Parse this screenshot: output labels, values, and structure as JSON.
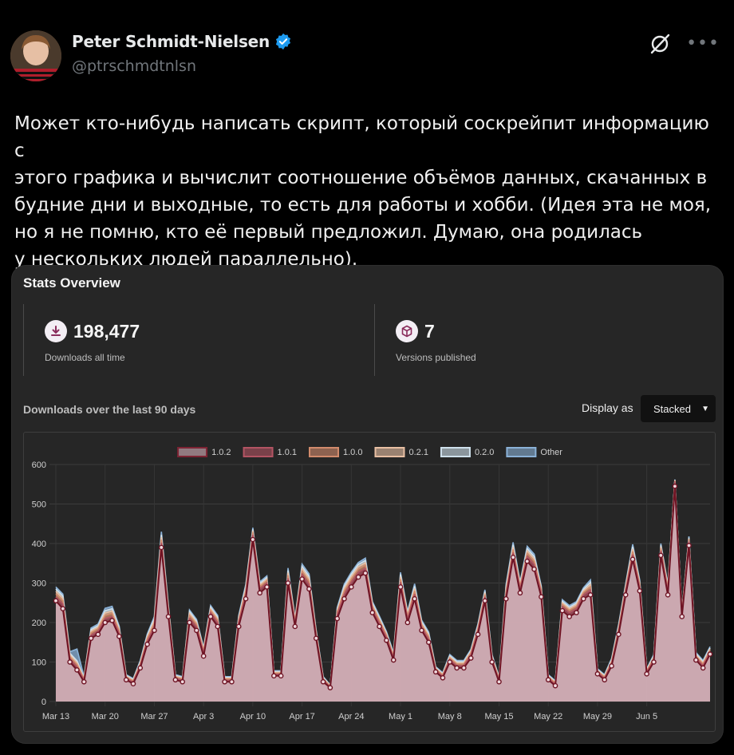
{
  "tweet": {
    "author_name": "Peter Schmidt-Nielsen",
    "author_handle": "@ptrschmdtnlsn",
    "text": "Может кто-нибудь написать скрипт, который соскрейпит информацию с\nэтого графика и вычислит соотношение объёмов данных, скачанных в\nбудние дни и выходные, то есть для работы и хобби. (Идея эта не моя,\nно я не помню, кто её первый предложил. Думаю, она родилась\nу нескольких людей параллельно)."
  },
  "card": {
    "title": "Stats Overview",
    "downloads_value": "198,477",
    "downloads_label": "Downloads all time",
    "versions_value": "7",
    "versions_label": "Versions published",
    "chart_heading": "Downloads over the last 90 days",
    "display_as_label": "Display as",
    "display_select_value": "Stacked"
  },
  "colors": {
    "accent_fill": "#d9b3bc",
    "line_dark": "#6e1424",
    "verified_blue": "#1d9bf0"
  },
  "chart_data": {
    "type": "area",
    "title": "",
    "xlabel": "",
    "ylabel": "",
    "ylim": [
      0,
      600
    ],
    "yticks": [
      0,
      100,
      200,
      300,
      400,
      500,
      600
    ],
    "x_tick_labels": [
      "Mar 13",
      "Mar 20",
      "Mar 27",
      "Apr 3",
      "Apr 10",
      "Apr 17",
      "Apr 24",
      "May 1",
      "May 8",
      "May 15",
      "May 22",
      "May 29",
      "Jun 5"
    ],
    "legend_position": "top",
    "grid": true,
    "stacked": true,
    "series": [
      {
        "name": "1.0.2",
        "color": "#7d2333",
        "values": [
          255,
          235,
          100,
          80,
          50,
          160,
          170,
          200,
          205,
          165,
          55,
          45,
          85,
          145,
          180,
          390,
          215,
          55,
          50,
          200,
          180,
          115,
          215,
          190,
          50,
          50,
          190,
          260,
          410,
          275,
          290,
          65,
          65,
          300,
          190,
          310,
          285,
          160,
          50,
          35,
          210,
          260,
          290,
          315,
          325,
          225,
          190,
          155,
          105,
          290,
          200,
          260,
          180,
          150,
          75,
          60,
          100,
          85,
          85,
          110,
          170,
          255,
          100,
          50,
          260,
          365,
          275,
          355,
          335,
          265,
          55,
          40,
          230,
          215,
          225,
          260,
          270,
          70,
          55,
          90,
          170,
          270,
          360,
          280,
          70,
          100,
          370,
          270,
          545,
          215,
          395,
          105,
          85,
          120
        ]
      },
      {
        "name": "1.0.1",
        "color": "#b35463",
        "values": [
          10,
          12,
          8,
          8,
          4,
          8,
          8,
          10,
          10,
          8,
          4,
          4,
          6,
          8,
          10,
          12,
          10,
          4,
          4,
          10,
          10,
          8,
          10,
          10,
          4,
          4,
          10,
          12,
          12,
          10,
          10,
          4,
          4,
          12,
          8,
          12,
          12,
          8,
          4,
          2,
          10,
          12,
          12,
          12,
          12,
          10,
          8,
          8,
          6,
          12,
          10,
          12,
          8,
          8,
          4,
          4,
          6,
          6,
          6,
          8,
          8,
          10,
          6,
          4,
          10,
          12,
          10,
          12,
          12,
          10,
          4,
          4,
          10,
          10,
          10,
          10,
          12,
          4,
          4,
          6,
          8,
          10,
          12,
          10,
          4,
          6,
          12,
          10,
          12,
          8,
          10,
          6,
          6,
          6
        ]
      },
      {
        "name": "1.0.0",
        "color": "#d28b6c",
        "values": [
          8,
          8,
          6,
          6,
          3,
          6,
          6,
          8,
          8,
          6,
          3,
          3,
          4,
          6,
          8,
          8,
          6,
          3,
          3,
          8,
          6,
          5,
          6,
          6,
          3,
          3,
          6,
          8,
          6,
          6,
          6,
          3,
          3,
          8,
          5,
          8,
          8,
          5,
          3,
          2,
          6,
          8,
          8,
          8,
          8,
          6,
          6,
          5,
          4,
          8,
          6,
          8,
          6,
          6,
          3,
          3,
          4,
          4,
          4,
          5,
          6,
          6,
          4,
          3,
          8,
          8,
          6,
          8,
          8,
          6,
          3,
          3,
          6,
          6,
          6,
          6,
          8,
          3,
          3,
          4,
          6,
          6,
          8,
          6,
          3,
          4,
          6,
          6,
          2,
          2,
          4,
          4,
          4,
          4
        ]
      },
      {
        "name": "0.2.1",
        "color": "#e8bfa3",
        "values": [
          6,
          6,
          4,
          4,
          2,
          4,
          4,
          6,
          6,
          4,
          2,
          2,
          3,
          4,
          6,
          6,
          4,
          2,
          2,
          5,
          4,
          3,
          4,
          4,
          2,
          2,
          4,
          6,
          4,
          4,
          4,
          2,
          2,
          6,
          3,
          6,
          6,
          3,
          2,
          1,
          4,
          6,
          6,
          6,
          6,
          4,
          4,
          3,
          3,
          6,
          4,
          6,
          4,
          4,
          2,
          2,
          3,
          3,
          3,
          3,
          4,
          4,
          3,
          2,
          6,
          6,
          4,
          6,
          6,
          4,
          2,
          2,
          4,
          4,
          4,
          4,
          6,
          2,
          2,
          3,
          4,
          4,
          6,
          4,
          2,
          3,
          4,
          4,
          1,
          1,
          3,
          3,
          3,
          3
        ]
      },
      {
        "name": "0.2.0",
        "color": "#cfe1ec",
        "values": [
          6,
          6,
          4,
          5,
          2,
          4,
          4,
          6,
          6,
          4,
          2,
          2,
          3,
          4,
          6,
          6,
          4,
          2,
          2,
          5,
          4,
          3,
          4,
          4,
          2,
          2,
          4,
          6,
          4,
          4,
          4,
          2,
          2,
          6,
          3,
          6,
          6,
          3,
          2,
          1,
          4,
          6,
          6,
          6,
          6,
          4,
          4,
          3,
          3,
          6,
          4,
          6,
          4,
          4,
          2,
          2,
          3,
          3,
          3,
          3,
          4,
          4,
          3,
          2,
          6,
          6,
          4,
          6,
          6,
          4,
          2,
          2,
          4,
          4,
          4,
          4,
          6,
          2,
          2,
          3,
          4,
          4,
          6,
          4,
          2,
          3,
          4,
          4,
          1,
          1,
          3,
          3,
          3,
          3
        ]
      },
      {
        "name": "Other",
        "color": "#8bb2d8",
        "values": [
          5,
          5,
          4,
          30,
          2,
          4,
          4,
          6,
          6,
          4,
          2,
          2,
          3,
          4,
          5,
          8,
          4,
          2,
          2,
          4,
          4,
          3,
          4,
          4,
          2,
          2,
          4,
          5,
          4,
          4,
          4,
          2,
          2,
          6,
          3,
          6,
          6,
          3,
          2,
          1,
          4,
          5,
          5,
          5,
          6,
          4,
          4,
          3,
          3,
          5,
          4,
          6,
          4,
          4,
          2,
          2,
          3,
          3,
          3,
          3,
          4,
          4,
          3,
          2,
          6,
          6,
          4,
          6,
          6,
          4,
          2,
          2,
          4,
          4,
          4,
          4,
          6,
          2,
          2,
          3,
          4,
          4,
          6,
          4,
          2,
          3,
          4,
          4,
          1,
          1,
          3,
          3,
          3,
          3
        ]
      }
    ]
  }
}
